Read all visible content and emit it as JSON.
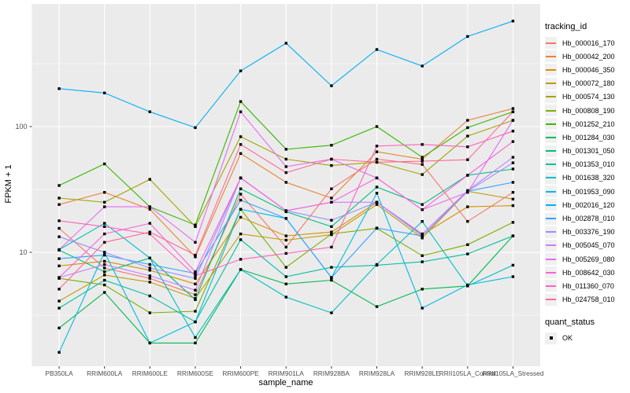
{
  "figure": {
    "background": "#FFFFFF",
    "panel_background": "#EBEBEB",
    "grid_color": "#FFFFFF",
    "axis_text_color": "#4D4D4D",
    "tick_color": "#333333",
    "point_color": "#000000"
  },
  "chart_data": {
    "type": "line",
    "title": "",
    "xlabel": "sample_name",
    "ylabel": "FPKM + 1",
    "y_scale": "log10",
    "y_major_ticks": [
      10,
      100
    ],
    "y_minor_ticks": [
      3.162,
      31.62,
      316.2
    ],
    "ylim": [
      1.24,
      944
    ],
    "grid": "white major+minor horizontal, major vertical per category",
    "point_marker": "black-square",
    "categories": [
      "PB350LA",
      "RRIM600LA",
      "RRIM600LE",
      "RRIM600SE",
      "RRIM600PE",
      "RRIM901LA",
      "RRIM928BA",
      "RRIM928LA",
      "RRIM928LE",
      "RRII105LA_Control",
      "RRII105LA_Stressed"
    ],
    "legend": {
      "title": "tracking_id",
      "position": "right"
    },
    "quant_legend": {
      "title": "quant_status",
      "items": [
        {
          "label": "OK",
          "marker": "black-square"
        }
      ]
    },
    "series": [
      {
        "name": "Hb_000016_170",
        "color": "#F8766D",
        "values": [
          15.5,
          7.5,
          6.2,
          4.6,
          29,
          11,
          32,
          55,
          50,
          17.6,
          30
        ]
      },
      {
        "name": "Hb_000042_200",
        "color": "#EA8331",
        "values": [
          24,
          30,
          22,
          9.2,
          61,
          36,
          27,
          63,
          55,
          112,
          139
        ]
      },
      {
        "name": "Hb_000046_350",
        "color": "#D89000",
        "values": [
          7.8,
          8.5,
          7.2,
          5.6,
          19,
          13.5,
          14.5,
          25,
          13.8,
          23,
          23.5
        ]
      },
      {
        "name": "Hb_000072_180",
        "color": "#C09B00",
        "values": [
          4.1,
          6.6,
          5.8,
          4.3,
          14,
          12.5,
          13.8,
          24,
          13,
          30.6,
          26.5
        ]
      },
      {
        "name": "Hb_000574_130",
        "color": "#A3A500",
        "values": [
          27,
          25,
          38,
          16,
          83,
          55,
          49,
          52,
          41.5,
          84,
          112
        ]
      },
      {
        "name": "Hb_000808_190",
        "color": "#7CAE00",
        "values": [
          6.2,
          5.5,
          3.3,
          3.4,
          22,
          7.6,
          14,
          15.5,
          9.4,
          11.5,
          17.3
        ]
      },
      {
        "name": "Hb_001252_210",
        "color": "#39B600",
        "values": [
          34,
          50.5,
          23,
          16.5,
          158,
          66,
          71,
          100,
          57,
          98,
          131
        ]
      },
      {
        "name": "Hb_001284_030",
        "color": "#00BB4E",
        "values": [
          2.5,
          4.8,
          1.9,
          1.9,
          7.3,
          5.6,
          6.0,
          3.7,
          5.1,
          5.4,
          13.5
        ]
      },
      {
        "name": "Hb_001301_050",
        "color": "#00BF7D",
        "values": [
          10.4,
          7.0,
          9.0,
          4.2,
          32,
          21,
          16,
          33,
          24,
          41,
          46
        ]
      },
      {
        "name": "Hb_001353_010",
        "color": "#00C1A3",
        "values": [
          3.6,
          6.0,
          4.5,
          2.8,
          12.6,
          6.4,
          7.6,
          7.9,
          8.4,
          9.7,
          13.5
        ]
      },
      {
        "name": "Hb_001638_320",
        "color": "#00BFC4",
        "values": [
          10.5,
          17,
          9.0,
          2.1,
          7.3,
          4.4,
          3.3,
          8.0,
          17.6,
          5.4,
          7.9
        ]
      },
      {
        "name": "Hb_001953_090",
        "color": "#00BAE0",
        "values": [
          1.6,
          10,
          1.9,
          2.8,
          22,
          18.6,
          6.3,
          29.5,
          3.6,
          5.5,
          6.4
        ]
      },
      {
        "name": "Hb_002016_120",
        "color": "#00B0F6",
        "values": [
          200,
          185,
          131,
          98,
          277,
          460,
          211,
          410,
          303,
          520,
          690
        ]
      },
      {
        "name": "Hb_002878_010",
        "color": "#35A2FF",
        "values": [
          8.9,
          9.5,
          8.0,
          6.8,
          26,
          18.6,
          6.3,
          15.6,
          13.5,
          30.6,
          36
        ]
      },
      {
        "name": "Hb_003376_190",
        "color": "#9590FF",
        "values": [
          13.3,
          10,
          7.5,
          6.2,
          39,
          21.4,
          18,
          25,
          13.5,
          30.6,
          51.5
        ]
      },
      {
        "name": "Hb_005045_070",
        "color": "#C77CFF",
        "values": [
          6.3,
          8.0,
          6.5,
          5.0,
          39,
          21.4,
          25,
          25,
          14,
          31,
          57
        ]
      },
      {
        "name": "Hb_005269_080",
        "color": "#E76BF3",
        "values": [
          10.5,
          23,
          23,
          12,
          131,
          48,
          55,
          39,
          21.8,
          30,
          112
        ]
      },
      {
        "name": "Hb_008642_030",
        "color": "#FA62DB",
        "values": [
          6.3,
          14,
          17,
          7.0,
          39,
          21.4,
          25,
          39,
          21.8,
          41,
          76
        ]
      },
      {
        "name": "Hb_011360_070",
        "color": "#FF62BC",
        "values": [
          17.8,
          16,
          14,
          6.5,
          8.8,
          9.8,
          11,
          70,
          72,
          69,
          92
        ]
      },
      {
        "name": "Hb_024758_010",
        "color": "#FF6A98",
        "values": [
          5.1,
          12,
          14.5,
          9.5,
          72,
          43,
          55,
          52,
          53,
          54.5,
          131
        ]
      }
    ]
  }
}
